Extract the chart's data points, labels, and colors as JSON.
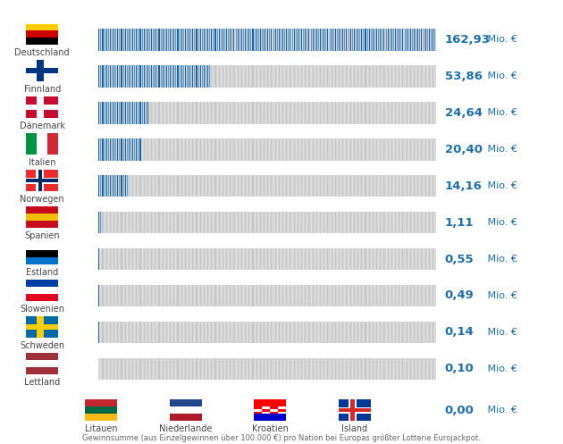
{
  "countries_bars": [
    {
      "name": "Deutschland",
      "value": 162.93,
      "label": "162,93",
      "unit": "Mio. €"
    },
    {
      "name": "Finnland",
      "value": 53.86,
      "label": "53,86",
      "unit": "Mio. €"
    },
    {
      "name": "Dänemark",
      "value": 24.64,
      "label": "24,64",
      "unit": "Mio. €"
    },
    {
      "name": "Italien",
      "value": 20.4,
      "label": "20,40",
      "unit": "Mio. €"
    },
    {
      "name": "Norwegen",
      "value": 14.16,
      "label": "14,16",
      "unit": "Mio. €"
    },
    {
      "name": "Spanien",
      "value": 1.11,
      "label": "1,11",
      "unit": "Mio. €"
    },
    {
      "name": "Estland",
      "value": 0.55,
      "label": "0,55",
      "unit": "Mio. €"
    },
    {
      "name": "Slowenien",
      "value": 0.49,
      "label": "0,49",
      "unit": "Mio. €"
    },
    {
      "name": "Schweden",
      "value": 0.14,
      "label": "0,14",
      "unit": "Mio. €"
    },
    {
      "name": "Lettland",
      "value": 0.1,
      "label": "0,10",
      "unit": "Mio. €"
    }
  ],
  "countries_zero": [
    {
      "name": "Litauen"
    },
    {
      "name": "Niederlande"
    },
    {
      "name": "Kroatien"
    },
    {
      "name": "Island"
    }
  ],
  "zero_label": "0,00",
  "zero_unit": "Mio. €",
  "max_value": 162.93,
  "bar_color": "#1e6fa8",
  "bg_bar_color": "#d4d4d4",
  "stripe_dark": "#1565a0",
  "stripe_light": "#5b9bd5",
  "bg_stripe_dark": "#c8c8c8",
  "bg_stripe_light": "#e0e0e0",
  "value_color": "#1e6fa8",
  "label_color": "#444444",
  "footnote": "Gewinnsumme (aus Einzelgewinnen über 100.000 €) pro Nation bei Europas größter Lotterie Eurojackpot.",
  "bg_color": "#ffffff",
  "flag_data": {
    "Deutschland": {
      "type": "h3",
      "colors": [
        "#000000",
        "#cc0000",
        "#ffcc00"
      ]
    },
    "Finnland": {
      "type": "cross",
      "bg": "#ffffff",
      "cross": "#003580"
    },
    "Dänemark": {
      "type": "cross",
      "bg": "#c60c30",
      "cross": "#ffffff"
    },
    "Italien": {
      "type": "v3",
      "colors": [
        "#009246",
        "#ffffff",
        "#ce2b37"
      ]
    },
    "Norwegen": {
      "type": "cross2",
      "bg": "#ef2b2d",
      "cross1": "#ffffff",
      "cross2": "#002868"
    },
    "Spanien": {
      "type": "h3",
      "colors": [
        "#c60b1e",
        "#f1bf00",
        "#c60b1e"
      ]
    },
    "Estland": {
      "type": "h3",
      "colors": [
        "#0072ce",
        "#000000",
        "#ffffff"
      ]
    },
    "Slowenien": {
      "type": "h3_top",
      "colors": [
        "#003da5",
        "#ffffff",
        "#e40522"
      ]
    },
    "Schweden": {
      "type": "cross",
      "bg": "#006aa7",
      "cross": "#fecc02"
    },
    "Lettland": {
      "type": "h3",
      "colors": [
        "#9e3039",
        "#ffffff",
        "#9e3039"
      ]
    },
    "Litauen": {
      "type": "h3",
      "colors": [
        "#fdb913",
        "#006a44",
        "#c1272d"
      ]
    },
    "Niederlande": {
      "type": "h3",
      "colors": [
        "#ae1c28",
        "#ffffff",
        "#21468b"
      ]
    },
    "Kroatien": {
      "type": "hr_check",
      "colors": [
        "#ff0000",
        "#ffffff",
        "#0000cc"
      ]
    },
    "Island": {
      "type": "cross2",
      "bg": "#003897",
      "cross1": "#ffffff",
      "cross2": "#d72828"
    }
  }
}
